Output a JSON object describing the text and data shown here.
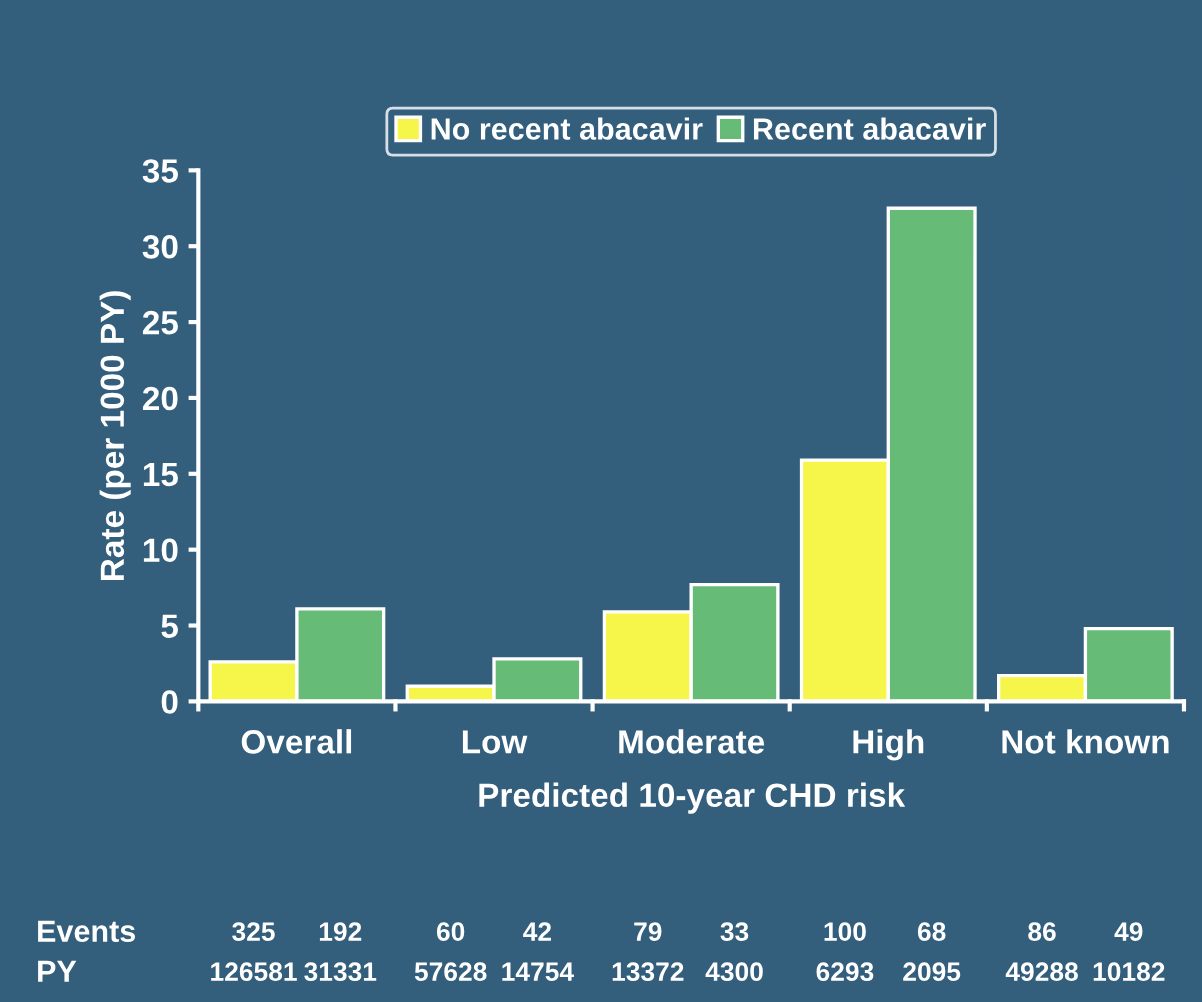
{
  "chart_data": {
    "type": "bar",
    "xlabel": "Predicted 10-year CHD risk",
    "ylabel": "Rate (per 1000 PY)",
    "categories": [
      "Overall",
      "Low",
      "Moderate",
      "High",
      "Not known"
    ],
    "series": [
      {
        "name": "No recent abacavir",
        "color": "#f5f54a",
        "values": [
          2.6,
          1.0,
          5.9,
          15.9,
          1.7
        ]
      },
      {
        "name": "Recent abacavir",
        "color": "#66bb77",
        "values": [
          6.1,
          2.8,
          7.7,
          32.5,
          4.8
        ]
      }
    ],
    "ylim": [
      0,
      35
    ],
    "yticks": [
      0,
      5,
      10,
      15,
      20,
      25,
      30,
      35
    ],
    "grid": false,
    "legend": "top",
    "annotations": [
      "Events",
      "325",
      "192",
      "60",
      "42",
      "79",
      "33",
      "100",
      "68",
      "86",
      "49",
      "PY",
      "126581",
      "31331",
      "57628",
      "14754",
      "13372",
      "4300",
      "6293",
      "2095",
      "49288",
      "10182"
    ]
  }
}
